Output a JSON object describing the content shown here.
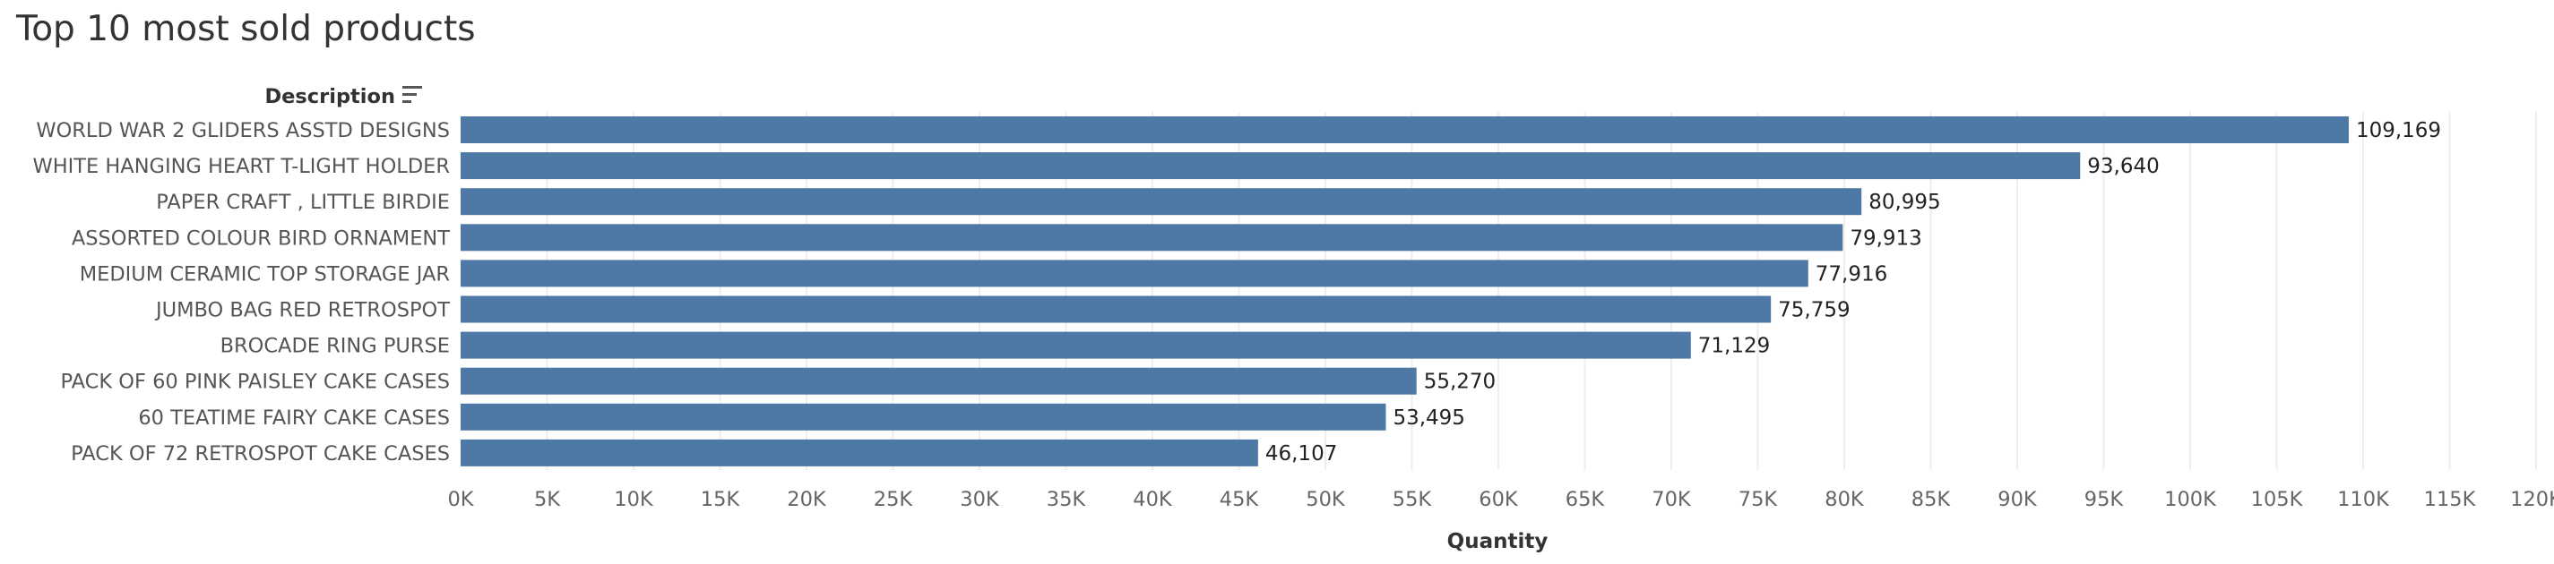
{
  "chart_data": {
    "type": "bar",
    "orientation": "horizontal",
    "title": "Top 10 most sold products",
    "row_header": "Description",
    "xlabel": "Quantity",
    "xlim": [
      0,
      120000
    ],
    "x_ticks": [
      "0K",
      "5K",
      "10K",
      "15K",
      "20K",
      "25K",
      "30K",
      "35K",
      "40K",
      "45K",
      "50K",
      "55K",
      "60K",
      "65K",
      "70K",
      "75K",
      "80K",
      "85K",
      "90K",
      "95K",
      "100K",
      "105K",
      "110K",
      "115K",
      "120K"
    ],
    "x_tick_values": [
      0,
      5000,
      10000,
      15000,
      20000,
      25000,
      30000,
      35000,
      40000,
      45000,
      50000,
      55000,
      60000,
      65000,
      70000,
      75000,
      80000,
      85000,
      90000,
      95000,
      100000,
      105000,
      110000,
      115000,
      120000
    ],
    "grid": true,
    "bar_color": "#4e79a7",
    "categories": [
      "WORLD WAR 2 GLIDERS ASSTD DESIGNS",
      "WHITE HANGING HEART T-LIGHT HOLDER",
      "PAPER CRAFT , LITTLE BIRDIE",
      "ASSORTED COLOUR BIRD ORNAMENT",
      "MEDIUM CERAMIC TOP STORAGE JAR",
      "JUMBO BAG RED RETROSPOT",
      "BROCADE RING PURSE",
      "PACK OF 60 PINK PAISLEY CAKE CASES",
      "60 TEATIME FAIRY CAKE CASES",
      "PACK OF 72 RETROSPOT CAKE CASES"
    ],
    "values": [
      109169,
      93640,
      80995,
      79913,
      77916,
      75759,
      71129,
      55270,
      53495,
      46107
    ],
    "value_labels": [
      "109,169",
      "93,640",
      "80,995",
      "79,913",
      "77,916",
      "75,759",
      "71,129",
      "55,270",
      "53,495",
      "46,107"
    ]
  }
}
